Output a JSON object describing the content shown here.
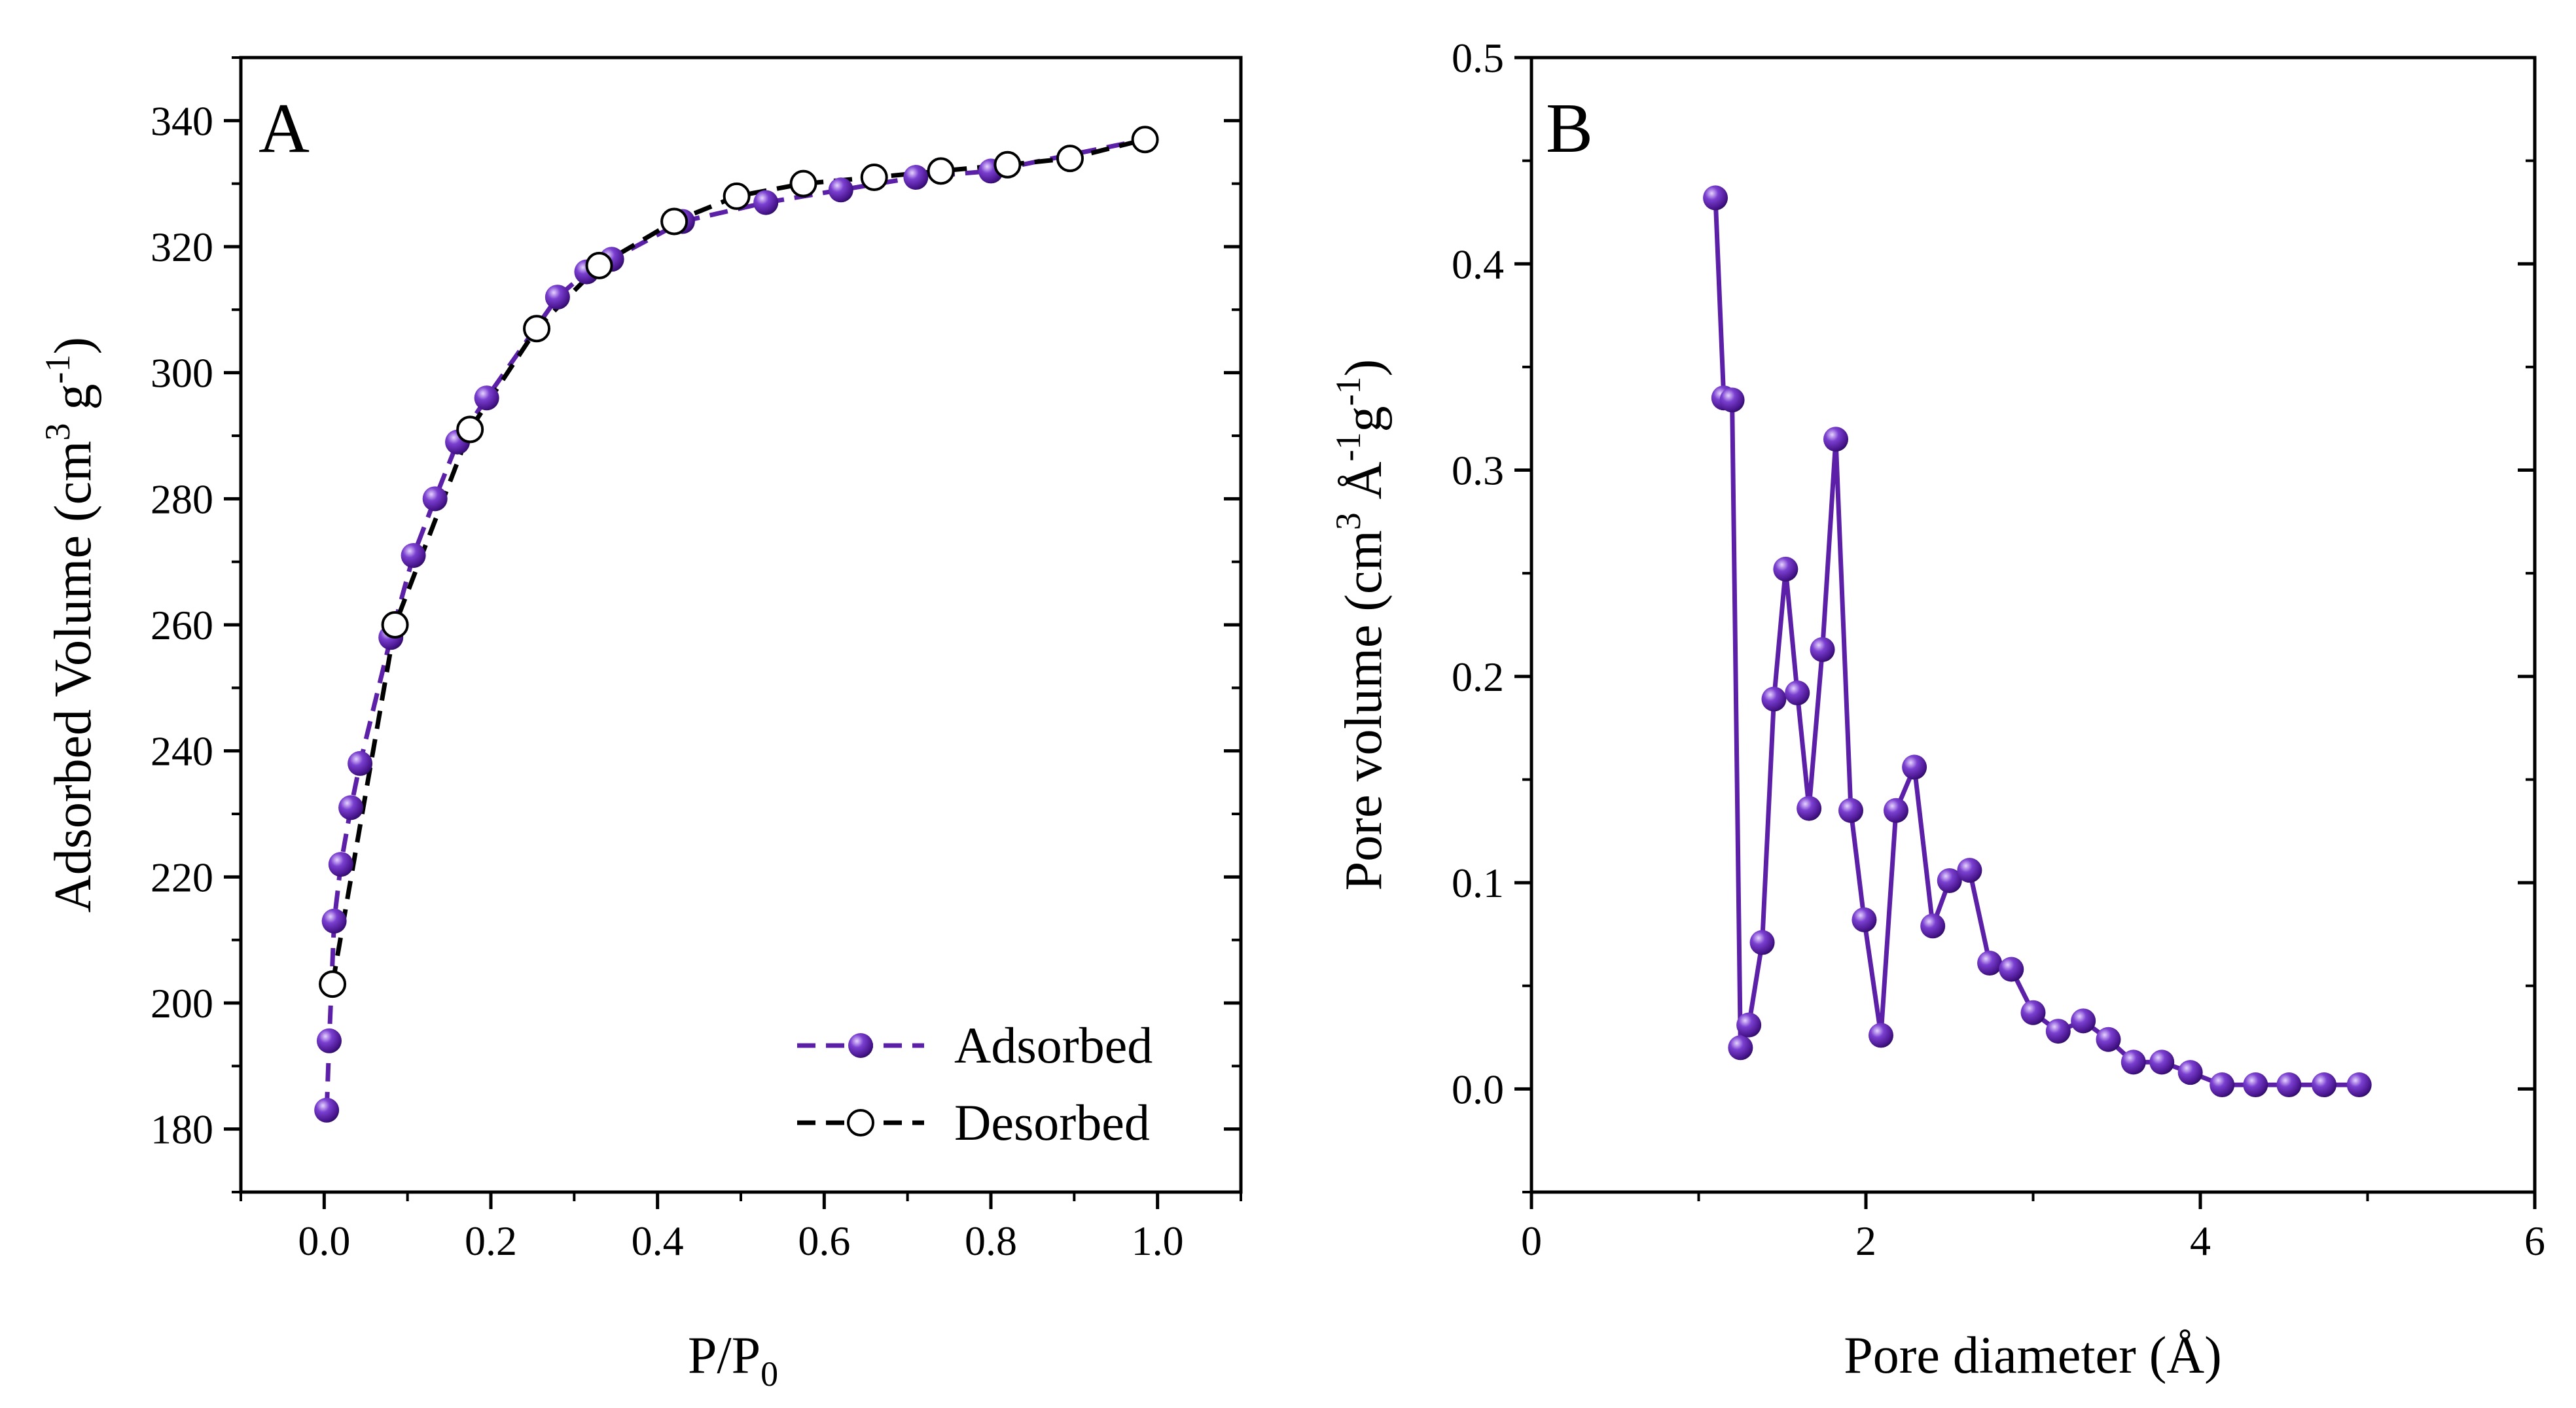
{
  "colors": {
    "adsorbed": "#5b1fa8",
    "adsorbed_highlight": "#e6d4ff",
    "adsorbed_dark": "#2a0a5e",
    "desorbed": "#000000",
    "open_marker_fill": "#ffffff"
  },
  "chart_data": [
    {
      "id": "A",
      "type": "line",
      "panel_label": "A",
      "xlabel_main": "P/P",
      "xlabel_sub": "0",
      "ylabel": {
        "main": "Adsorbed Volume (cm",
        "sup1": "3",
        "mid": " g",
        "sup2": "-1",
        "end": ")"
      },
      "xlim": [
        -0.1,
        1.1
      ],
      "ylim": [
        170,
        350
      ],
      "xticks": [
        0.0,
        0.2,
        0.4,
        0.6,
        0.8,
        1.0
      ],
      "xtick_labels": [
        "0.0",
        "0.2",
        "0.4",
        "0.6",
        "0.8",
        "1.0"
      ],
      "yticks": [
        180,
        200,
        220,
        240,
        260,
        280,
        300,
        320,
        340
      ],
      "ytick_labels": [
        "180",
        "200",
        "220",
        "240",
        "260",
        "280",
        "300",
        "320",
        "340"
      ],
      "legend_position": "bottom-right",
      "series": [
        {
          "name": "Adsorbed",
          "style": "dashed-filled",
          "x": [
            0.003,
            0.006,
            0.012,
            0.02,
            0.032,
            0.043,
            0.08,
            0.107,
            0.133,
            0.16,
            0.195,
            0.28,
            0.315,
            0.345,
            0.43,
            0.53,
            0.62,
            0.71,
            0.8,
            0.985
          ],
          "y": [
            183,
            194,
            213,
            222,
            231,
            238,
            258,
            271,
            280,
            289,
            296,
            312,
            316,
            318,
            324,
            327,
            329,
            331,
            332,
            337
          ]
        },
        {
          "name": "Desorbed",
          "style": "dashed-open",
          "x": [
            0.01,
            0.085,
            0.175,
            0.255,
            0.33,
            0.42,
            0.495,
            0.575,
            0.66,
            0.74,
            0.82,
            0.895,
            0.985
          ],
          "y": [
            203,
            260,
            291,
            307,
            317,
            324,
            328,
            330,
            331,
            332,
            333,
            334,
            337
          ]
        }
      ]
    },
    {
      "id": "B",
      "type": "line",
      "panel_label": "B",
      "xlabel": "Pore diameter (Å)",
      "ylabel": {
        "main": "Pore volume (cm",
        "sup1": "3",
        "mid": " Å",
        "sup2": "-1",
        "mid2": "g",
        "sup3": "-1",
        "end": ")"
      },
      "xlim": [
        0,
        6
      ],
      "ylim": [
        -0.05,
        0.5
      ],
      "xticks": [
        0,
        2,
        4,
        6
      ],
      "xtick_labels": [
        "0",
        "2",
        "4",
        "6"
      ],
      "yticks": [
        0.0,
        0.1,
        0.2,
        0.3,
        0.4,
        0.5
      ],
      "ytick_labels": [
        "0.0",
        "0.1",
        "0.2",
        "0.3",
        "0.4",
        "0.5"
      ],
      "series": [
        {
          "name": "Pore volume",
          "style": "solid-filled",
          "x": [
            1.1,
            1.15,
            1.2,
            1.25,
            1.3,
            1.38,
            1.45,
            1.52,
            1.59,
            1.66,
            1.74,
            1.82,
            1.91,
            1.99,
            2.09,
            2.18,
            2.29,
            2.4,
            2.5,
            2.62,
            2.74,
            2.87,
            3.0,
            3.15,
            3.3,
            3.45,
            3.6,
            3.77,
            3.94,
            4.13,
            4.33,
            4.53,
            4.74,
            4.95
          ],
          "y": [
            0.432,
            0.335,
            0.334,
            0.02,
            0.031,
            0.071,
            0.189,
            0.252,
            0.192,
            0.136,
            0.213,
            0.315,
            0.135,
            0.082,
            0.026,
            0.135,
            0.156,
            0.079,
            0.101,
            0.106,
            0.061,
            0.058,
            0.037,
            0.028,
            0.033,
            0.024,
            0.013,
            0.013,
            0.008,
            0.002,
            0.002,
            0.002,
            0.002,
            0.002
          ]
        }
      ]
    }
  ]
}
